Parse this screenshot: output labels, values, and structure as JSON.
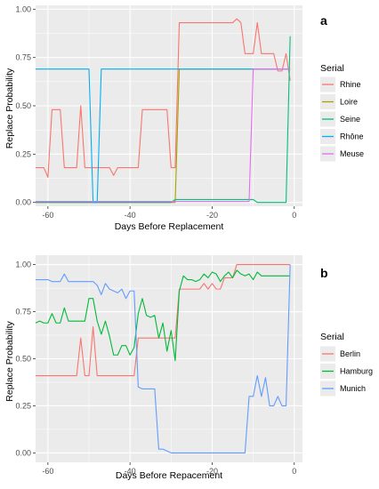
{
  "chart_data": [
    {
      "type": "line",
      "panel_label": "a",
      "xlabel": "Days Before Replacement",
      "ylabel": "Replace Probability",
      "xlim": [
        -63,
        2
      ],
      "ylim": [
        -0.02,
        1.02
      ],
      "x_ticks": [
        -60,
        -40,
        -20,
        0
      ],
      "x_tick_labels": [
        "-60",
        "-40",
        "-20",
        "0"
      ],
      "y_ticks": [
        0,
        0.25,
        0.5,
        0.75,
        1
      ],
      "y_tick_labels": [
        "0.00",
        "0.25",
        "0.50",
        "0.75",
        "1.00"
      ],
      "grid": true,
      "legend_title": "Serial",
      "legend_position": "right",
      "series": [
        {
          "name": "Rhine",
          "color": "#F8766D",
          "x": [
            -63,
            -61,
            -60,
            -59,
            -58,
            -57,
            -56,
            -55,
            -54,
            -53,
            -52,
            -51,
            -50,
            -49,
            -48,
            -47,
            -46,
            -45,
            -44,
            -43,
            -42,
            -41,
            -40,
            -39,
            -38,
            -37,
            -36,
            -35,
            -34,
            -33,
            -32,
            -31,
            -30,
            -29,
            -28,
            -27,
            -26,
            -25,
            -24,
            -23,
            -22,
            -21,
            -20,
            -19,
            -18,
            -17,
            -16,
            -15,
            -14,
            -13,
            -12,
            -11,
            -10,
            -9,
            -8,
            -7,
            -6,
            -5,
            -4,
            -3,
            -2,
            -1
          ],
          "y": [
            0.18,
            0.18,
            0.13,
            0.48,
            0.48,
            0.48,
            0.18,
            0.18,
            0.18,
            0.18,
            0.5,
            0.18,
            0.18,
            0.18,
            0.18,
            0.18,
            0.18,
            0.18,
            0.14,
            0.18,
            0.18,
            0.18,
            0.18,
            0.18,
            0.18,
            0.48,
            0.48,
            0.48,
            0.48,
            0.48,
            0.48,
            0.48,
            0.18,
            0.18,
            0.93,
            0.93,
            0.93,
            0.93,
            0.93,
            0.93,
            0.93,
            0.93,
            0.93,
            0.93,
            0.93,
            0.93,
            0.93,
            0.93,
            0.95,
            0.93,
            0.77,
            0.77,
            0.77,
            0.93,
            0.77,
            0.77,
            0.77,
            0.77,
            0.68,
            0.68,
            0.77,
            0.63
          ]
        },
        {
          "name": "Loire",
          "color": "#A3A500",
          "x": [
            -63,
            -30,
            -29,
            -28,
            -1
          ],
          "y": [
            0.0,
            0.0,
            0.0,
            0.69,
            0.69
          ]
        },
        {
          "name": "Seine",
          "color": "#00BF7D",
          "x": [
            -63,
            -30,
            -29,
            -10,
            -9,
            -8,
            -2,
            -1
          ],
          "y": [
            0.0,
            0.0,
            0.015,
            0.015,
            0.0,
            0.0,
            0.0,
            0.86
          ]
        },
        {
          "name": "Rhône",
          "color": "#00B0F6",
          "x": [
            -63,
            -50,
            -49,
            -48,
            -47,
            -1
          ],
          "y": [
            0.69,
            0.69,
            0.0,
            0.0,
            0.69,
            0.69
          ]
        },
        {
          "name": "Meuse",
          "color": "#E76BF3",
          "x": [
            -63,
            -11,
            -10,
            -1
          ],
          "y": [
            0.005,
            0.005,
            0.69,
            0.69
          ]
        }
      ]
    },
    {
      "type": "line",
      "panel_label": "b",
      "xlabel": "Days Before Repacement",
      "ylabel": "Replace Probability",
      "xlim": [
        -63,
        2
      ],
      "ylim": [
        -0.05,
        1.05
      ],
      "x_ticks": [
        -60,
        -40,
        -20,
        0
      ],
      "x_tick_labels": [
        "-60",
        "-40",
        "-20",
        "0"
      ],
      "y_ticks": [
        0,
        0.25,
        0.5,
        0.75,
        1
      ],
      "y_tick_labels": [
        "0.00",
        "0.25",
        "0.50",
        "0.75",
        "1.00"
      ],
      "grid": true,
      "legend_title": "Serial",
      "legend_position": "right",
      "series": [
        {
          "name": "Berlin",
          "color": "#F8766D",
          "x": [
            -63,
            -61,
            -60,
            -59,
            -58,
            -57,
            -56,
            -55,
            -54,
            -53,
            -52,
            -51,
            -50,
            -49,
            -48,
            -47,
            -46,
            -45,
            -44,
            -43,
            -42,
            -41,
            -40,
            -39,
            -38,
            -37,
            -36,
            -35,
            -34,
            -33,
            -32,
            -31,
            -30,
            -29,
            -28,
            -27,
            -26,
            -25,
            -24,
            -23,
            -22,
            -21,
            -20,
            -19,
            -18,
            -17,
            -16,
            -15,
            -14,
            -13,
            -12,
            -11,
            -10,
            -9,
            -8,
            -7,
            -6,
            -5,
            -4,
            -3,
            -2,
            -1
          ],
          "y": [
            0.41,
            0.41,
            0.41,
            0.41,
            0.41,
            0.41,
            0.41,
            0.41,
            0.41,
            0.41,
            0.61,
            0.41,
            0.41,
            0.67,
            0.41,
            0.41,
            0.41,
            0.41,
            0.41,
            0.41,
            0.41,
            0.41,
            0.41,
            0.41,
            0.61,
            0.61,
            0.61,
            0.61,
            0.61,
            0.61,
            0.61,
            0.61,
            0.61,
            0.61,
            0.87,
            0.87,
            0.87,
            0.87,
            0.87,
            0.87,
            0.9,
            0.87,
            0.9,
            0.87,
            0.87,
            0.93,
            0.93,
            0.93,
            1.0,
            1.0,
            1.0,
            1.0,
            1.0,
            1.0,
            1.0,
            1.0,
            1.0,
            1.0,
            1.0,
            1.0,
            1.0,
            1.0
          ]
        },
        {
          "name": "Hamburg",
          "color": "#00BA38",
          "x": [
            -63,
            -62,
            -61,
            -60,
            -59,
            -58,
            -57,
            -56,
            -55,
            -54,
            -53,
            -52,
            -51,
            -50,
            -49,
            -48,
            -47,
            -46,
            -45,
            -44,
            -43,
            -42,
            -41,
            -40,
            -39,
            -38,
            -37,
            -36,
            -35,
            -34,
            -33,
            -32,
            -31,
            -30,
            -29,
            -28,
            -27,
            -26,
            -25,
            -24,
            -23,
            -22,
            -21,
            -20,
            -19,
            -18,
            -17,
            -16,
            -15,
            -14,
            -13,
            -12,
            -11,
            -10,
            -9,
            -8,
            -7,
            -6,
            -5,
            -4,
            -3,
            -2,
            -1
          ],
          "y": [
            0.69,
            0.7,
            0.69,
            0.69,
            0.74,
            0.69,
            0.69,
            0.77,
            0.7,
            0.7,
            0.7,
            0.7,
            0.7,
            0.82,
            0.82,
            0.7,
            0.63,
            0.7,
            0.62,
            0.52,
            0.52,
            0.57,
            0.57,
            0.52,
            0.56,
            0.74,
            0.82,
            0.73,
            0.72,
            0.73,
            0.61,
            0.69,
            0.54,
            0.65,
            0.49,
            0.86,
            0.94,
            0.92,
            0.92,
            0.91,
            0.92,
            0.95,
            0.93,
            0.96,
            0.95,
            0.91,
            0.94,
            0.96,
            0.93,
            0.97,
            0.95,
            0.94,
            0.95,
            0.92,
            0.96,
            0.94,
            0.94,
            0.94,
            0.94,
            0.94,
            0.94,
            0.94,
            0.94
          ]
        },
        {
          "name": "Munich",
          "color": "#619CFF",
          "x": [
            -63,
            -61,
            -60,
            -59,
            -58,
            -57,
            -56,
            -55,
            -54,
            -53,
            -52,
            -51,
            -50,
            -49,
            -48,
            -47,
            -46,
            -45,
            -44,
            -43,
            -42,
            -41,
            -40,
            -39,
            -38,
            -37,
            -36,
            -35,
            -34,
            -33,
            -32,
            -31,
            -30,
            -29,
            -28,
            -27,
            -26,
            -25,
            -24,
            -23,
            -22,
            -21,
            -20,
            -19,
            -18,
            -17,
            -16,
            -15,
            -14,
            -13,
            -12,
            -11,
            -10,
            -9,
            -8,
            -7,
            -6,
            -5,
            -4,
            -3,
            -2,
            -1
          ],
          "y": [
            0.92,
            0.92,
            0.92,
            0.91,
            0.91,
            0.91,
            0.95,
            0.91,
            0.91,
            0.91,
            0.91,
            0.91,
            0.91,
            0.91,
            0.89,
            0.84,
            0.9,
            0.87,
            0.86,
            0.85,
            0.87,
            0.82,
            0.86,
            0.86,
            0.35,
            0.34,
            0.34,
            0.34,
            0.34,
            0.02,
            0.02,
            0.01,
            0.0,
            0.0,
            0.0,
            0.0,
            0.0,
            0.0,
            0.0,
            0.0,
            0.0,
            0.0,
            0.0,
            0.0,
            0.0,
            0.0,
            0.0,
            0.0,
            0.0,
            0.0,
            0.0,
            0.3,
            0.3,
            0.41,
            0.3,
            0.4,
            0.25,
            0.25,
            0.3,
            0.25,
            0.25,
            1.0
          ]
        }
      ]
    }
  ]
}
